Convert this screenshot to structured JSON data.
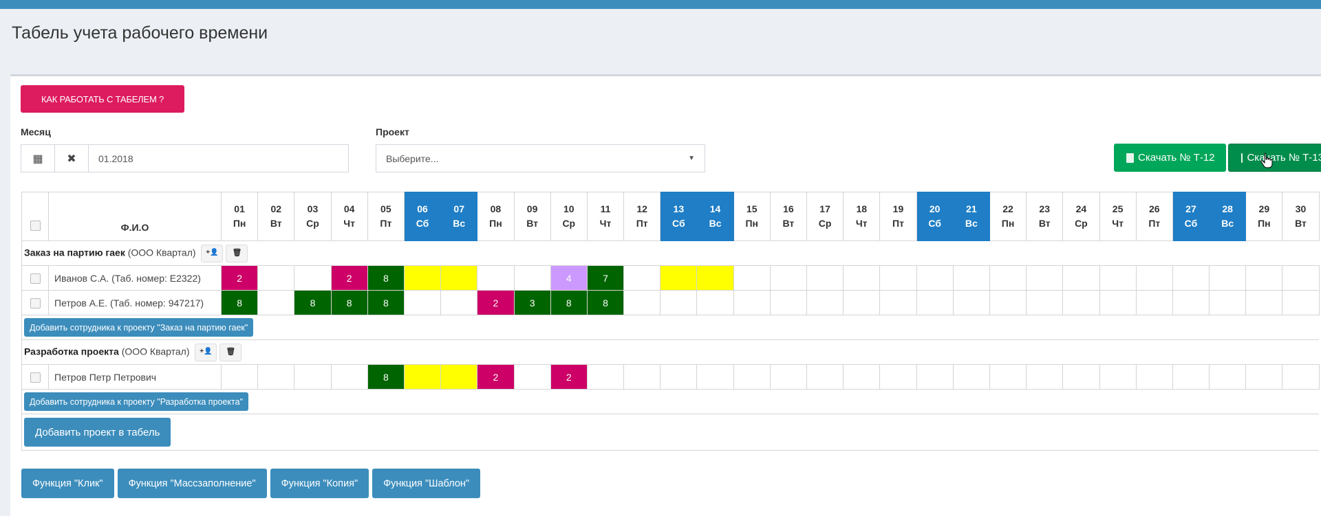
{
  "page": {
    "title": "Табель учета рабочего времени"
  },
  "help_button": "КАК РАБОТАТЬ С ТАБЕЛЕМ ?",
  "filters": {
    "month_label": "Месяц",
    "month_value": "01.2018",
    "project_label": "Проект",
    "project_placeholder": "Выберите..."
  },
  "downloads": [
    "Скачать № Т-12",
    "Скачать № Т-13"
  ],
  "colors": {
    "weekend": "#1f7ec6",
    "pink": "#cc0066",
    "green": "#006400",
    "yellow": "#ffff00",
    "lavender": "#cc99ff",
    "primary": "#3c8dbc",
    "help": "#dd1b5f",
    "download": "#00a65a"
  },
  "table": {
    "name_header": "Ф.И.О",
    "days": [
      {
        "d": "01",
        "w": "Пн"
      },
      {
        "d": "02",
        "w": "Вт"
      },
      {
        "d": "03",
        "w": "Ср"
      },
      {
        "d": "04",
        "w": "Чт"
      },
      {
        "d": "05",
        "w": "Пт"
      },
      {
        "d": "06",
        "w": "Сб",
        "weekend": true
      },
      {
        "d": "07",
        "w": "Вс",
        "weekend": true
      },
      {
        "d": "08",
        "w": "Пн"
      },
      {
        "d": "09",
        "w": "Вт"
      },
      {
        "d": "10",
        "w": "Ср"
      },
      {
        "d": "11",
        "w": "Чт"
      },
      {
        "d": "12",
        "w": "Пт"
      },
      {
        "d": "13",
        "w": "Сб",
        "weekend": true
      },
      {
        "d": "14",
        "w": "Вс",
        "weekend": true
      },
      {
        "d": "15",
        "w": "Пн"
      },
      {
        "d": "16",
        "w": "Вт"
      },
      {
        "d": "17",
        "w": "Ср"
      },
      {
        "d": "18",
        "w": "Чт"
      },
      {
        "d": "19",
        "w": "Пт"
      },
      {
        "d": "20",
        "w": "Сб",
        "weekend": true
      },
      {
        "d": "21",
        "w": "Вс",
        "weekend": true
      },
      {
        "d": "22",
        "w": "Пн"
      },
      {
        "d": "23",
        "w": "Вт"
      },
      {
        "d": "24",
        "w": "Ср"
      },
      {
        "d": "25",
        "w": "Чт"
      },
      {
        "d": "26",
        "w": "Пт"
      },
      {
        "d": "27",
        "w": "Сб",
        "weekend": true
      },
      {
        "d": "28",
        "w": "Вс",
        "weekend": true
      },
      {
        "d": "29",
        "w": "Пн"
      },
      {
        "d": "30",
        "w": "Вт"
      }
    ],
    "projects": [
      {
        "title": "Заказ на партию гаек",
        "org": "(ООО Квартал)",
        "add_employee": "Добавить сотрудника к проекту \"Заказ на партию гаек\"",
        "employees": [
          {
            "name": "Иванов С.А. (Таб. номер: E2322)",
            "cells": {
              "1": [
                "2",
                "pink"
              ],
              "4": [
                "2",
                "pink"
              ],
              "5": [
                "8",
                "green"
              ],
              "6": [
                "",
                "yellow"
              ],
              "7": [
                "",
                "yellow"
              ],
              "10": [
                "4",
                "lavender"
              ],
              "11": [
                "7",
                "green"
              ],
              "13": [
                "",
                "yellow"
              ],
              "14": [
                "",
                "yellow"
              ]
            }
          },
          {
            "name": "Петров А.Е. (Таб. номер: 947217)",
            "cells": {
              "1": [
                "8",
                "green"
              ],
              "3": [
                "8",
                "green"
              ],
              "4": [
                "8",
                "green"
              ],
              "5": [
                "8",
                "green"
              ],
              "8": [
                "2",
                "pink"
              ],
              "9": [
                "3",
                "green"
              ],
              "10": [
                "8",
                "green"
              ],
              "11": [
                "8",
                "green"
              ]
            }
          }
        ]
      },
      {
        "title": "Разработка проекта",
        "org": "(ООО Квартал)",
        "add_employee": "Добавить сотрудника к проекту \"Разработка проекта\"",
        "employees": [
          {
            "name": "Петров Петр Петрович",
            "cells": {
              "5": [
                "8",
                "green"
              ],
              "6": [
                "",
                "yellow"
              ],
              "7": [
                "",
                "yellow"
              ],
              "8": [
                "2",
                "pink"
              ],
              "10": [
                "2",
                "pink"
              ]
            }
          }
        ]
      }
    ],
    "add_project": "Добавить проект в табель"
  },
  "functions": [
    "Функция \"Клик\"",
    "Функция \"Массзаполнение\"",
    "Функция \"Копия\"",
    "Функция \"Шаблон\""
  ]
}
